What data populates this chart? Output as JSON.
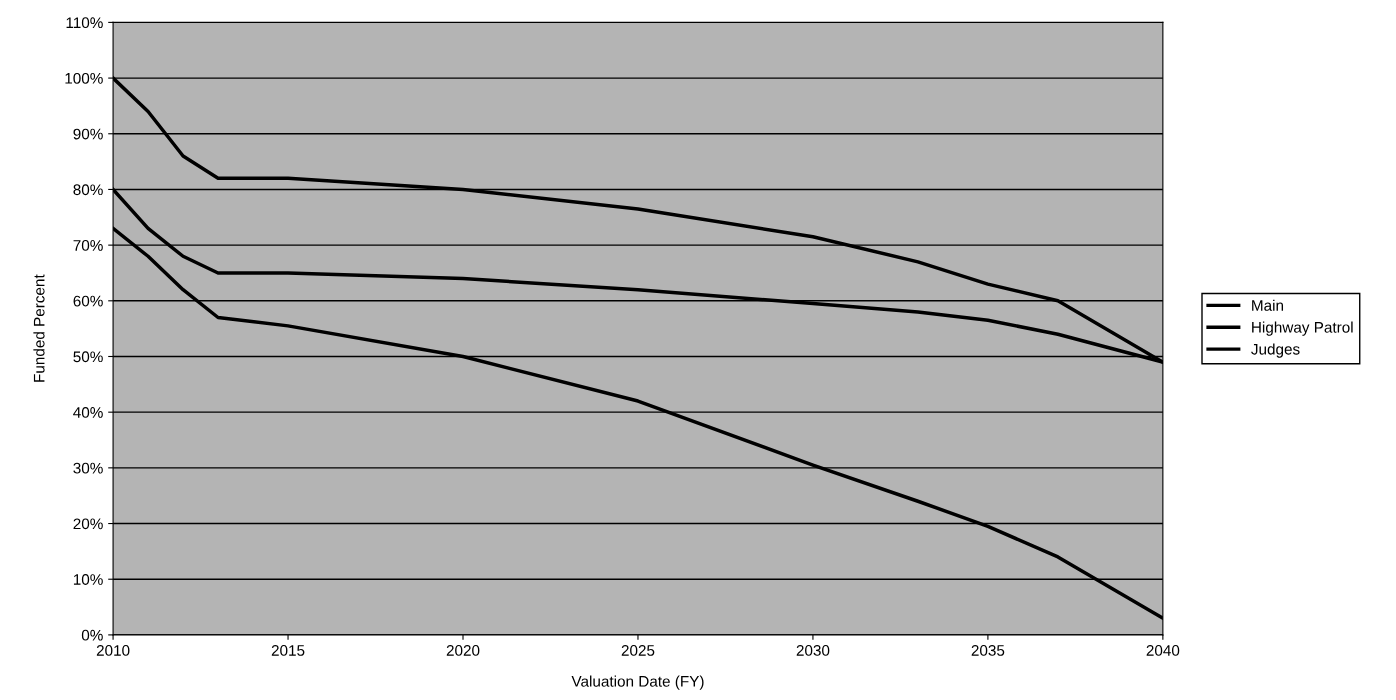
{
  "chart_data": {
    "type": "line",
    "xlabel": "Valuation Date (FY)",
    "ylabel": "Funded Percent",
    "x": [
      2010,
      2011,
      2012,
      2013,
      2015,
      2020,
      2025,
      2030,
      2033,
      2035,
      2037,
      2040
    ],
    "series": [
      {
        "name": "Main",
        "color": "#000000",
        "values": [
          100,
          94,
          86,
          82,
          82,
          80,
          76.5,
          71.5,
          67,
          63,
          60,
          49
        ]
      },
      {
        "name": "Highway Patrol",
        "color": "#000000",
        "values": [
          80,
          73,
          68,
          65,
          65,
          64,
          62,
          59.5,
          58,
          56.5,
          54,
          49
        ]
      },
      {
        "name": "Judges",
        "color": "#000000",
        "values": [
          73,
          68,
          62,
          57,
          55.5,
          50,
          42,
          30.5,
          24,
          19.5,
          14,
          3
        ]
      }
    ],
    "xlim": [
      2010,
      2040
    ],
    "xticks": [
      2010,
      2015,
      2020,
      2025,
      2030,
      2035,
      2040
    ],
    "ylim": [
      0,
      110
    ],
    "yticks": [
      {
        "value": 0,
        "label": "0%"
      },
      {
        "value": 10,
        "label": "10%"
      },
      {
        "value": 20,
        "label": "20%"
      },
      {
        "value": 30,
        "label": "30%"
      },
      {
        "value": 40,
        "label": "40%"
      },
      {
        "value": 50,
        "label": "50%"
      },
      {
        "value": 60,
        "label": "60%"
      },
      {
        "value": 70,
        "label": "70%"
      },
      {
        "value": 80,
        "label": "80%"
      },
      {
        "value": 90,
        "label": "90%"
      },
      {
        "value": 100,
        "label": "100%"
      },
      {
        "value": 110,
        "label": "110%"
      }
    ],
    "grid": "y",
    "legend": "right",
    "marker": "none",
    "line_style": "solid"
  }
}
